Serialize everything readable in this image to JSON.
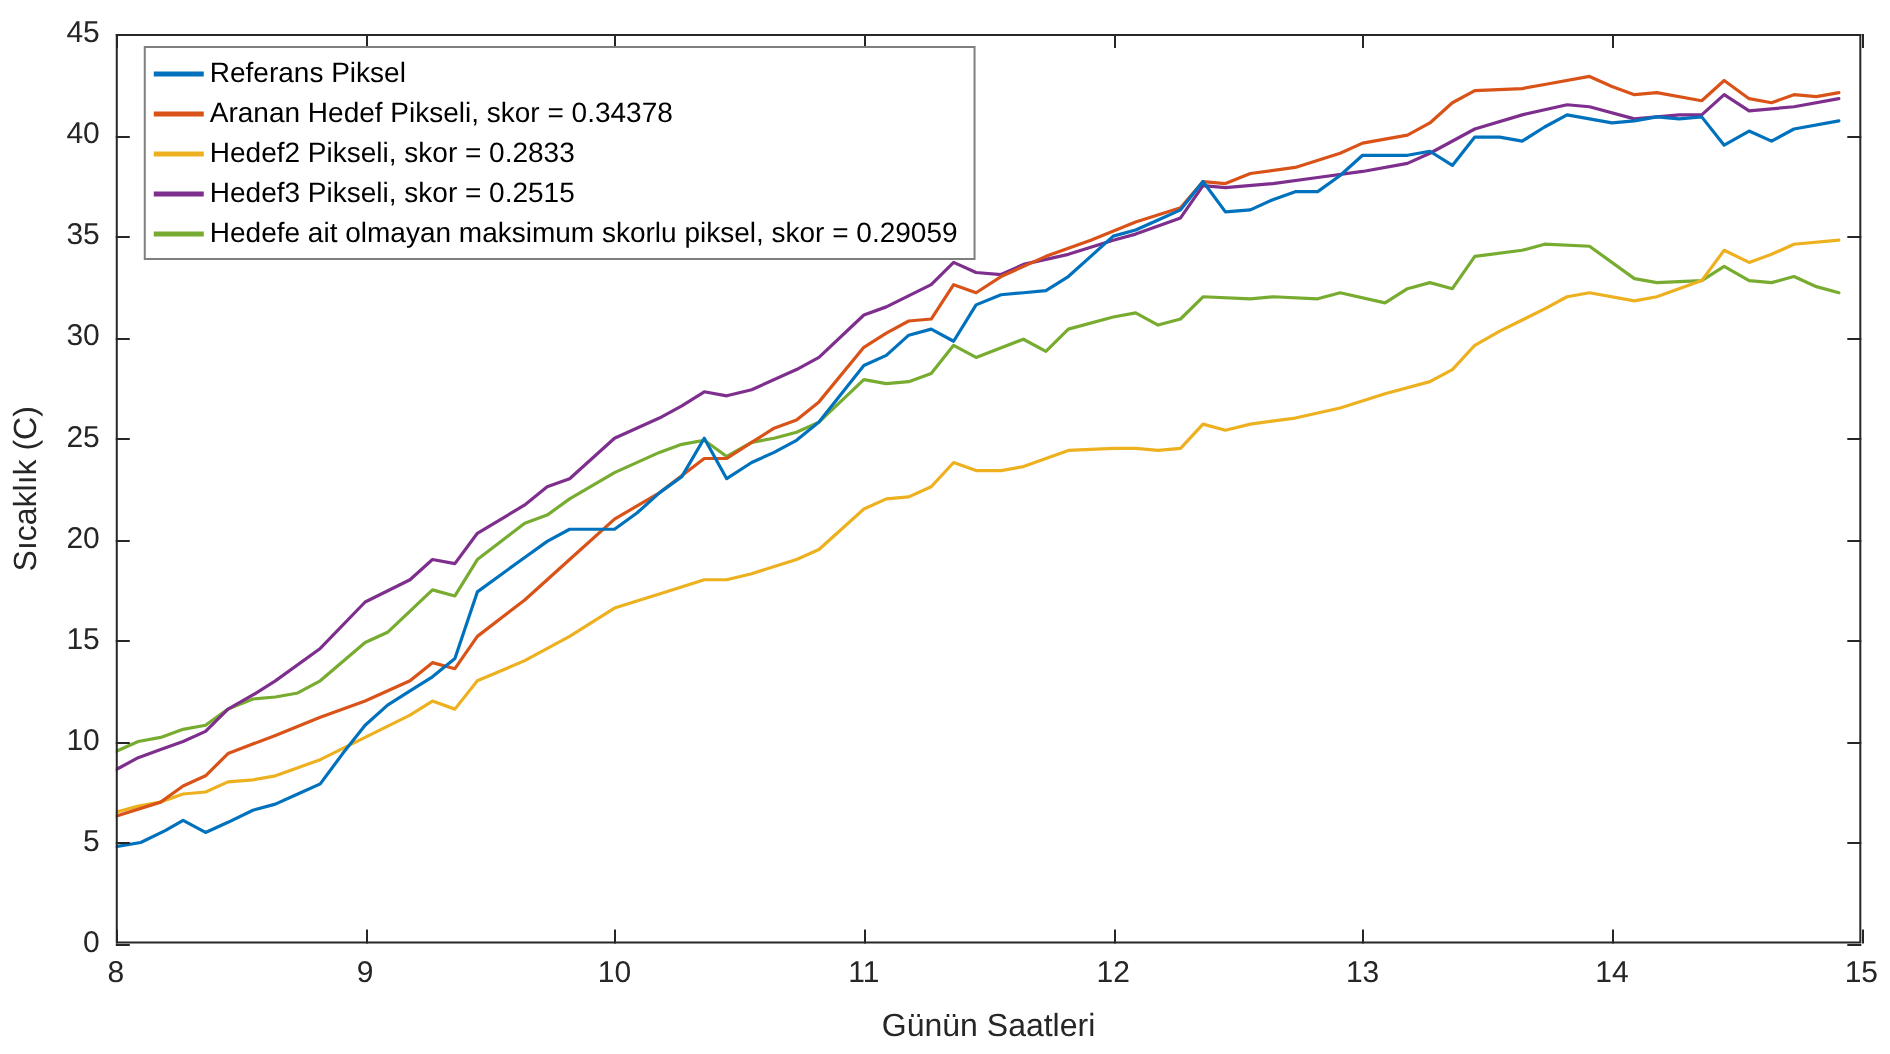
{
  "chart_data": {
    "type": "line",
    "xlabel": "Günün Saatleri",
    "ylabel": "Sıcaklık (C)",
    "xlim": [
      8,
      15
    ],
    "xticks": [
      8,
      9,
      10,
      11,
      12,
      13,
      14,
      15
    ],
    "ylim": [
      0,
      45
    ],
    "yticks": [
      0,
      5,
      10,
      15,
      20,
      25,
      30,
      35,
      40,
      45
    ],
    "grid": false,
    "legend": "top left",
    "marker": "none",
    "line_style": "solid",
    "series": [
      {
        "name": "Referans Piksel",
        "color": "#0072bd",
        "x": [
          8.0,
          8.1,
          8.2,
          8.27,
          8.36,
          8.45,
          8.55,
          8.64,
          8.73,
          8.82,
          8.91,
          9.0,
          9.09,
          9.18,
          9.27,
          9.36,
          9.45,
          9.55,
          9.64,
          9.73,
          9.82,
          10.0,
          10.09,
          10.18,
          10.27,
          10.36,
          10.45,
          10.55,
          10.64,
          10.73,
          10.82,
          10.91,
          11.0,
          11.09,
          11.18,
          11.27,
          11.36,
          11.45,
          11.55,
          11.64,
          11.73,
          11.82,
          11.91,
          12.0,
          12.09,
          12.18,
          12.27,
          12.36,
          12.45,
          12.55,
          12.64,
          12.73,
          12.82,
          12.91,
          13.0,
          13.09,
          13.18,
          13.27,
          13.36,
          13.45,
          13.55,
          13.64,
          13.73,
          13.82,
          13.91,
          14.0,
          14.09,
          14.18,
          14.27,
          14.36,
          14.45,
          14.55,
          14.64,
          14.73,
          14.91
        ],
        "values": [
          4.8,
          5.0,
          5.6,
          6.1,
          5.5,
          6.0,
          6.6,
          6.9,
          7.4,
          7.9,
          9.4,
          10.8,
          11.8,
          12.5,
          13.2,
          14.1,
          17.4,
          18.3,
          19.1,
          19.9,
          20.5,
          20.5,
          21.3,
          22.3,
          23.1,
          25.0,
          23.0,
          23.8,
          24.3,
          24.9,
          25.8,
          27.2,
          28.6,
          29.1,
          30.1,
          30.4,
          29.8,
          31.6,
          32.1,
          32.2,
          32.3,
          33.0,
          34.0,
          35.0,
          35.3,
          35.8,
          36.3,
          37.7,
          36.2,
          36.3,
          36.8,
          37.2,
          37.2,
          38.0,
          39.0,
          39.0,
          39.0,
          39.2,
          38.5,
          39.9,
          39.9,
          39.7,
          40.4,
          41.0,
          40.8,
          40.6,
          40.7,
          40.9,
          40.8,
          40.9,
          39.5,
          40.2,
          39.7,
          40.3,
          40.7
        ]
      },
      {
        "name": "Aranan Hedef Pikseli, skor = 0.34378",
        "color": "#d95319",
        "x": [
          8.0,
          8.18,
          8.27,
          8.36,
          8.45,
          8.64,
          8.82,
          9.0,
          9.18,
          9.27,
          9.36,
          9.45,
          9.64,
          9.82,
          10.0,
          10.18,
          10.36,
          10.45,
          10.55,
          10.64,
          10.73,
          10.82,
          11.0,
          11.09,
          11.18,
          11.27,
          11.36,
          11.45,
          11.55,
          11.73,
          11.91,
          12.09,
          12.27,
          12.36,
          12.45,
          12.55,
          12.73,
          12.91,
          13.0,
          13.18,
          13.27,
          13.36,
          13.45,
          13.64,
          13.73,
          13.91,
          14.0,
          14.09,
          14.18,
          14.36,
          14.45,
          14.55,
          14.64,
          14.73,
          14.82,
          14.91
        ],
        "values": [
          6.3,
          7.0,
          7.8,
          8.3,
          9.4,
          10.3,
          11.2,
          12.0,
          13.0,
          13.9,
          13.6,
          15.2,
          17.0,
          19.0,
          21.0,
          22.3,
          24.0,
          24.0,
          24.8,
          25.5,
          25.9,
          26.8,
          29.5,
          30.2,
          30.8,
          30.9,
          32.6,
          32.2,
          33.0,
          34.0,
          34.8,
          35.7,
          36.4,
          37.7,
          37.6,
          38.1,
          38.4,
          39.1,
          39.6,
          40.0,
          40.6,
          41.6,
          42.2,
          42.3,
          42.5,
          42.9,
          42.4,
          42.0,
          42.1,
          41.7,
          42.7,
          41.8,
          41.6,
          42.0,
          41.9,
          42.1
        ]
      },
      {
        "name": "Hedef2 Pikseli, skor = 0.2833",
        "color": "#edb120",
        "x": [
          8.0,
          8.09,
          8.18,
          8.27,
          8.36,
          8.45,
          8.55,
          8.64,
          8.73,
          8.82,
          9.0,
          9.18,
          9.27,
          9.36,
          9.45,
          9.64,
          9.82,
          10.0,
          10.18,
          10.36,
          10.45,
          10.55,
          10.73,
          10.82,
          11.0,
          11.09,
          11.18,
          11.27,
          11.36,
          11.45,
          11.55,
          11.64,
          11.82,
          12.0,
          12.09,
          12.18,
          12.27,
          12.36,
          12.45,
          12.55,
          12.73,
          12.91,
          13.09,
          13.27,
          13.36,
          13.45,
          13.55,
          13.73,
          13.82,
          13.91,
          14.09,
          14.18,
          14.36,
          14.45,
          14.55,
          14.64,
          14.73,
          14.91
        ],
        "values": [
          6.5,
          6.8,
          7.0,
          7.4,
          7.5,
          8.0,
          8.1,
          8.3,
          8.7,
          9.1,
          10.2,
          11.3,
          12.0,
          11.6,
          13.0,
          14.0,
          15.2,
          16.6,
          17.3,
          18.0,
          18.0,
          18.3,
          19.0,
          19.5,
          21.5,
          22.0,
          22.1,
          22.6,
          23.8,
          23.4,
          23.4,
          23.6,
          24.4,
          24.5,
          24.5,
          24.4,
          24.5,
          25.7,
          25.4,
          25.7,
          26.0,
          26.5,
          27.2,
          27.8,
          28.4,
          29.6,
          30.3,
          31.4,
          32.0,
          32.2,
          31.8,
          32.0,
          32.8,
          34.3,
          33.7,
          34.1,
          34.6,
          34.8
        ]
      },
      {
        "name": "Hedef3 Pikseli, skor = 0.2515",
        "color": "#7e2f8e",
        "x": [
          8.0,
          8.09,
          8.18,
          8.27,
          8.36,
          8.45,
          8.55,
          8.64,
          8.82,
          9.0,
          9.18,
          9.27,
          9.36,
          9.45,
          9.64,
          9.73,
          9.82,
          10.0,
          10.18,
          10.27,
          10.36,
          10.45,
          10.55,
          10.73,
          10.82,
          11.0,
          11.09,
          11.27,
          11.36,
          11.45,
          11.55,
          11.64,
          11.82,
          12.0,
          12.09,
          12.27,
          12.36,
          12.45,
          12.64,
          12.82,
          13.0,
          13.18,
          13.27,
          13.45,
          13.64,
          13.82,
          13.91,
          14.09,
          14.27,
          14.36,
          14.45,
          14.55,
          14.73,
          14.91
        ],
        "values": [
          8.6,
          9.2,
          9.6,
          10.0,
          10.5,
          11.6,
          12.3,
          13.0,
          14.6,
          16.9,
          18.0,
          19.0,
          18.8,
          20.3,
          21.7,
          22.6,
          23.0,
          25.0,
          26.0,
          26.6,
          27.3,
          27.1,
          27.4,
          28.4,
          29.0,
          31.1,
          31.5,
          32.6,
          33.7,
          33.2,
          33.1,
          33.6,
          34.1,
          34.8,
          35.1,
          35.9,
          37.5,
          37.4,
          37.6,
          37.9,
          38.2,
          38.6,
          39.1,
          40.3,
          41.0,
          41.5,
          41.4,
          40.8,
          41.0,
          41.0,
          42.0,
          41.2,
          41.4,
          41.8
        ]
      },
      {
        "name": "Hedefe ait olmayan maksimum skorlu piksel, skor = 0.29059",
        "color": "#77ac30",
        "x": [
          8.0,
          8.09,
          8.18,
          8.27,
          8.36,
          8.45,
          8.55,
          8.64,
          8.73,
          8.82,
          9.0,
          9.09,
          9.27,
          9.36,
          9.45,
          9.64,
          9.73,
          9.82,
          10.0,
          10.18,
          10.27,
          10.36,
          10.45,
          10.55,
          10.64,
          10.73,
          10.82,
          11.0,
          11.09,
          11.18,
          11.27,
          11.36,
          11.45,
          11.64,
          11.73,
          11.82,
          12.0,
          12.09,
          12.18,
          12.27,
          12.36,
          12.55,
          12.64,
          12.82,
          12.91,
          13.09,
          13.18,
          13.27,
          13.36,
          13.45,
          13.64,
          13.73,
          13.91,
          14.09,
          14.18,
          14.36,
          14.45,
          14.55,
          14.64,
          14.73,
          14.82,
          14.91
        ],
        "values": [
          9.5,
          10.0,
          10.2,
          10.6,
          10.8,
          11.6,
          12.1,
          12.2,
          12.4,
          13.0,
          14.9,
          15.4,
          17.5,
          17.2,
          19.0,
          20.8,
          21.2,
          22.0,
          23.3,
          24.3,
          24.7,
          24.9,
          24.1,
          24.8,
          25.0,
          25.3,
          25.8,
          27.9,
          27.7,
          27.8,
          28.2,
          29.6,
          29.0,
          29.9,
          29.3,
          30.4,
          31.0,
          31.2,
          30.6,
          30.9,
          32.0,
          31.9,
          32.0,
          31.9,
          32.2,
          31.7,
          32.4,
          32.7,
          32.4,
          34.0,
          34.3,
          34.6,
          34.5,
          32.9,
          32.7,
          32.8,
          33.5,
          32.8,
          32.7,
          33.0,
          32.5,
          32.2
        ]
      }
    ]
  }
}
